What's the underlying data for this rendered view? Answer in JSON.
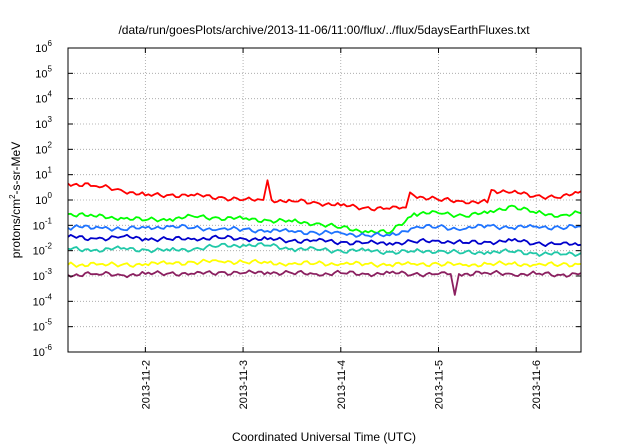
{
  "chart_data": {
    "type": "line",
    "title": "/data/run/goesPlots/archive/2013-11-06/11:00/flux/../flux/5daysEarthFluxes.txt",
    "xlabel": "Coordinated Universal Time (UTC)",
    "ylabel": {
      "prefix": "protons/cm",
      "sup": "2",
      "suffix": "-s-sr-MeV"
    },
    "yscale": "log",
    "ylim_exponents": [
      -6,
      6
    ],
    "y_ticks": [
      {
        "base": "10",
        "exp": "6"
      },
      {
        "base": "10",
        "exp": "5"
      },
      {
        "base": "10",
        "exp": "4"
      },
      {
        "base": "10",
        "exp": "3"
      },
      {
        "base": "10",
        "exp": "2"
      },
      {
        "base": "10",
        "exp": "1"
      },
      {
        "base": "10",
        "exp": "0"
      },
      {
        "base": "10",
        "exp": "-1"
      },
      {
        "base": "10",
        "exp": "-2"
      },
      {
        "base": "10",
        "exp": "-3"
      },
      {
        "base": "10",
        "exp": "-4"
      },
      {
        "base": "10",
        "exp": "-5"
      },
      {
        "base": "10",
        "exp": "-6"
      }
    ],
    "xlim": [
      "2013-11-01T05:00",
      "2013-11-06T11:00"
    ],
    "x_ticks": [
      "2013-11-2",
      "2013-11-3",
      "2013-11-4",
      "2013-11-5",
      "2013-11-6"
    ],
    "grid": true,
    "series": [
      {
        "color": "#ff0000",
        "x": [
          "2013-11-01T05:00",
          "2013-11-01T12:00",
          "2013-11-01T18:00",
          "2013-11-02T00:00",
          "2013-11-02T06:00",
          "2013-11-02T12:00",
          "2013-11-02T18:00",
          "2013-11-03T00:00",
          "2013-11-03T05:00",
          "2013-11-03T06:00",
          "2013-11-03T07:00",
          "2013-11-03T12:00",
          "2013-11-03T18:00",
          "2013-11-04T00:00",
          "2013-11-04T06:00",
          "2013-11-04T12:00",
          "2013-11-04T16:00",
          "2013-11-04T17:00",
          "2013-11-04T18:00",
          "2013-11-05T00:00",
          "2013-11-05T06:00",
          "2013-11-05T12:00",
          "2013-11-05T13:00",
          "2013-11-05T18:00",
          "2013-11-06T00:00",
          "2013-11-06T06:00",
          "2013-11-06T11:00"
        ],
        "y": [
          4.5,
          3.5,
          2.5,
          1.5,
          1.6,
          1.5,
          1.3,
          1.0,
          1.0,
          6.0,
          1.0,
          0.9,
          0.8,
          0.6,
          0.5,
          0.45,
          0.5,
          2.0,
          1.5,
          1.0,
          0.9,
          0.8,
          2.5,
          2.0,
          1.5,
          1.2,
          2.2
        ]
      },
      {
        "color": "#00ff00",
        "x": [
          "2013-11-01T05:00",
          "2013-11-01T12:00",
          "2013-11-01T18:00",
          "2013-11-02T00:00",
          "2013-11-02T06:00",
          "2013-11-02T12:00",
          "2013-11-02T18:00",
          "2013-11-03T00:00",
          "2013-11-03T06:00",
          "2013-11-03T12:00",
          "2013-11-03T18:00",
          "2013-11-04T00:00",
          "2013-11-04T06:00",
          "2013-11-04T12:00",
          "2013-11-04T18:00",
          "2013-11-05T00:00",
          "2013-11-05T06:00",
          "2013-11-05T12:00",
          "2013-11-05T18:00",
          "2013-11-06T00:00",
          "2013-11-06T06:00",
          "2013-11-06T11:00"
        ],
        "y": [
          0.28,
          0.22,
          0.2,
          0.16,
          0.18,
          0.22,
          0.2,
          0.18,
          0.16,
          0.14,
          0.12,
          0.08,
          0.06,
          0.05,
          0.3,
          0.3,
          0.25,
          0.3,
          0.6,
          0.3,
          0.25,
          0.3
        ]
      },
      {
        "color": "#1e73ff",
        "x": [
          "2013-11-01T05:00",
          "2013-11-01T12:00",
          "2013-11-01T18:00",
          "2013-11-02T00:00",
          "2013-11-02T06:00",
          "2013-11-02T12:00",
          "2013-11-02T18:00",
          "2013-11-03T00:00",
          "2013-11-03T06:00",
          "2013-11-03T12:00",
          "2013-11-03T18:00",
          "2013-11-04T00:00",
          "2013-11-04T06:00",
          "2013-11-04T12:00",
          "2013-11-04T18:00",
          "2013-11-05T00:00",
          "2013-11-05T06:00",
          "2013-11-05T12:00",
          "2013-11-05T18:00",
          "2013-11-06T00:00",
          "2013-11-06T06:00",
          "2013-11-06T11:00"
        ],
        "y": [
          0.08,
          0.09,
          0.07,
          0.08,
          0.09,
          0.08,
          0.07,
          0.07,
          0.06,
          0.06,
          0.05,
          0.05,
          0.04,
          0.04,
          0.08,
          0.09,
          0.07,
          0.1,
          0.08,
          0.09,
          0.08,
          0.09
        ]
      },
      {
        "color": "#0000cc",
        "x": [
          "2013-11-01T05:00",
          "2013-11-01T12:00",
          "2013-11-01T18:00",
          "2013-11-02T00:00",
          "2013-11-02T06:00",
          "2013-11-02T12:00",
          "2013-11-02T18:00",
          "2013-11-03T00:00",
          "2013-11-03T06:00",
          "2013-11-03T12:00",
          "2013-11-03T18:00",
          "2013-11-04T00:00",
          "2013-11-04T06:00",
          "2013-11-04T12:00",
          "2013-11-04T18:00",
          "2013-11-05T00:00",
          "2013-11-05T06:00",
          "2013-11-05T12:00",
          "2013-11-05T18:00",
          "2013-11-06T00:00",
          "2013-11-06T06:00",
          "2013-11-06T11:00"
        ],
        "y": [
          0.035,
          0.03,
          0.035,
          0.03,
          0.028,
          0.03,
          0.032,
          0.03,
          0.028,
          0.025,
          0.025,
          0.022,
          0.02,
          0.02,
          0.022,
          0.025,
          0.02,
          0.022,
          0.025,
          0.02,
          0.018,
          0.017
        ]
      },
      {
        "color": "#20c8a8",
        "x": [
          "2013-11-01T05:00",
          "2013-11-01T12:00",
          "2013-11-01T18:00",
          "2013-11-02T00:00",
          "2013-11-02T06:00",
          "2013-11-02T12:00",
          "2013-11-02T18:00",
          "2013-11-03T00:00",
          "2013-11-03T06:00",
          "2013-11-03T12:00",
          "2013-11-03T18:00",
          "2013-11-04T00:00",
          "2013-11-04T06:00",
          "2013-11-04T12:00",
          "2013-11-04T18:00",
          "2013-11-05T00:00",
          "2013-11-05T06:00",
          "2013-11-05T12:00",
          "2013-11-05T18:00",
          "2013-11-06T00:00",
          "2013-11-06T06:00",
          "2013-11-06T11:00"
        ],
        "y": [
          0.012,
          0.011,
          0.012,
          0.011,
          0.01,
          0.012,
          0.015,
          0.017,
          0.016,
          0.012,
          0.011,
          0.01,
          0.01,
          0.009,
          0.009,
          0.01,
          0.008,
          0.009,
          0.009,
          0.008,
          0.007,
          0.008
        ]
      },
      {
        "color": "#ffff00",
        "x": [
          "2013-11-01T05:00",
          "2013-11-01T12:00",
          "2013-11-01T18:00",
          "2013-11-02T00:00",
          "2013-11-02T06:00",
          "2013-11-02T12:00",
          "2013-11-02T18:00",
          "2013-11-03T00:00",
          "2013-11-03T06:00",
          "2013-11-03T12:00",
          "2013-11-03T18:00",
          "2013-11-04T00:00",
          "2013-11-04T06:00",
          "2013-11-04T12:00",
          "2013-11-04T18:00",
          "2013-11-05T00:00",
          "2013-11-05T06:00",
          "2013-11-05T12:00",
          "2013-11-05T18:00",
          "2013-11-06T00:00",
          "2013-11-06T06:00",
          "2013-11-06T11:00"
        ],
        "y": [
          0.0028,
          0.0028,
          0.0027,
          0.003,
          0.0032,
          0.0035,
          0.0038,
          0.0036,
          0.0033,
          0.003,
          0.0032,
          0.003,
          0.003,
          0.0028,
          0.003,
          0.003,
          0.0027,
          0.003,
          0.003,
          0.0028,
          0.0028,
          0.003
        ]
      },
      {
        "color": "#8b2060",
        "x": [
          "2013-11-01T05:00",
          "2013-11-01T12:00",
          "2013-11-01T18:00",
          "2013-11-02T00:00",
          "2013-11-02T06:00",
          "2013-11-02T12:00",
          "2013-11-02T18:00",
          "2013-11-03T00:00",
          "2013-11-03T06:00",
          "2013-11-03T12:00",
          "2013-11-03T18:00",
          "2013-11-04T00:00",
          "2013-11-04T06:00",
          "2013-11-04T12:00",
          "2013-11-04T18:00",
          "2013-11-05T00:00",
          "2013-11-05T03:00",
          "2013-11-05T04:00",
          "2013-11-05T05:00",
          "2013-11-05T12:00",
          "2013-11-05T18:00",
          "2013-11-06T00:00",
          "2013-11-06T06:00",
          "2013-11-06T11:00"
        ],
        "y": [
          0.0011,
          0.0012,
          0.0011,
          0.0012,
          0.0013,
          0.0012,
          0.0014,
          0.0013,
          0.0014,
          0.0013,
          0.0012,
          0.0013,
          0.0012,
          0.0013,
          0.0012,
          0.0012,
          0.0012,
          0.00018,
          0.0012,
          0.0013,
          0.0012,
          0.0012,
          0.0011,
          0.0013
        ]
      }
    ]
  }
}
